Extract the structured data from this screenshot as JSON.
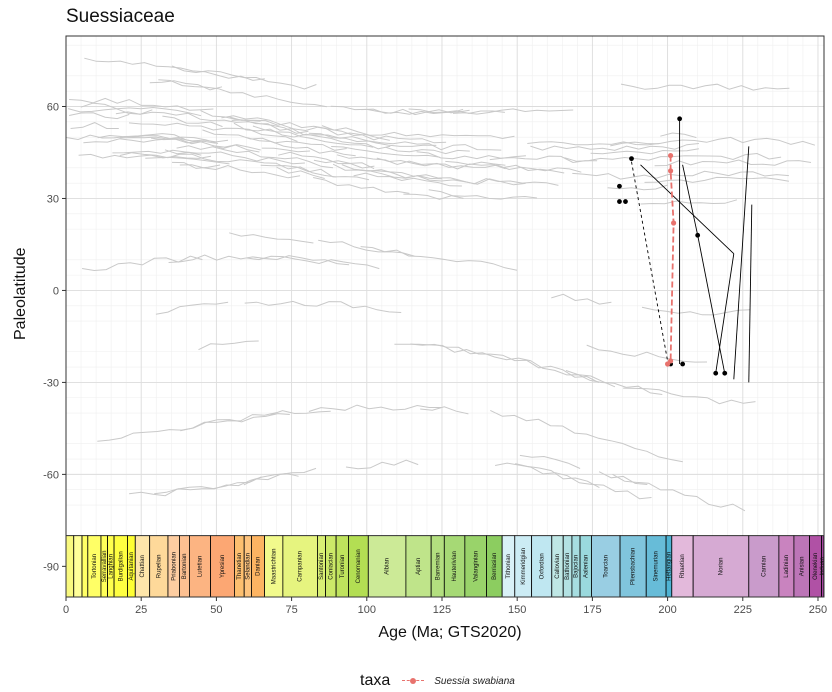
{
  "chart_data": {
    "type": "line",
    "title": "Suessiaceae",
    "xlabel": "Age (Ma; GTS2020)",
    "ylabel": "Paleolatitude",
    "xlim": [
      0,
      252
    ],
    "ylim": [
      -100,
      83
    ],
    "x_ticks": [
      0,
      25,
      50,
      75,
      100,
      125,
      150,
      175,
      200,
      225,
      250
    ],
    "y_ticks": [
      -90,
      -60,
      -30,
      0,
      30,
      60
    ],
    "grid": true,
    "legend_title": "taxa",
    "legend_position": "bottom",
    "series": [
      {
        "name": "Suessia swabiana",
        "color": "#e8726d",
        "style": "dashed",
        "points": [
          [
            201,
            44
          ],
          [
            201,
            39
          ],
          [
            202,
            22
          ],
          [
            201,
            -23
          ],
          [
            200,
            -24
          ]
        ]
      }
    ],
    "other_taxa_tracks": [
      {
        "style": "dashed",
        "points": [
          [
            188,
            42
          ],
          [
            200,
            -23
          ]
        ]
      },
      {
        "style": "solid",
        "points": [
          [
            205,
            41
          ],
          [
            210,
            18
          ],
          [
            219,
            -27
          ]
        ]
      },
      {
        "style": "solid",
        "points": [
          [
            204,
            56
          ],
          [
            204,
            -24
          ]
        ]
      },
      {
        "style": "solid",
        "points": [
          [
            222,
            12
          ],
          [
            216,
            -27
          ]
        ]
      },
      {
        "style": "solid",
        "points": [
          [
            227,
            47
          ],
          [
            222,
            -29
          ]
        ]
      },
      {
        "style": "solid",
        "points": [
          [
            228,
            28
          ],
          [
            227,
            -30
          ]
        ]
      },
      {
        "style": "solid",
        "points": [
          [
            191,
            41
          ],
          [
            222,
            12
          ]
        ]
      }
    ],
    "other_taxa_points": [
      [
        184,
        34
      ],
      [
        184,
        29
      ],
      [
        186,
        29
      ],
      [
        188,
        43
      ],
      [
        204,
        56
      ],
      [
        201,
        -24
      ],
      [
        205,
        -24
      ],
      [
        210,
        18
      ],
      [
        216,
        -27
      ],
      [
        219,
        -27
      ]
    ],
    "timescale": {
      "y_range": [
        -100,
        -80
      ],
      "stages": [
        {
          "name": "",
          "start": 0,
          "end": 2.58,
          "color": "#f9f97f"
        },
        {
          "name": "",
          "start": 2.58,
          "end": 5.33,
          "color": "#ffff99"
        },
        {
          "name": "",
          "start": 5.33,
          "end": 7.25,
          "color": "#ffff66"
        },
        {
          "name": "Tortonian",
          "start": 7.25,
          "end": 11.63,
          "color": "#ffff66"
        },
        {
          "name": "Serravallian",
          "start": 11.63,
          "end": 13.82,
          "color": "#ffff59"
        },
        {
          "name": "Langhian",
          "start": 13.82,
          "end": 15.98,
          "color": "#ffff4d"
        },
        {
          "name": "Burdigalian",
          "start": 15.98,
          "end": 20.44,
          "color": "#ffff41"
        },
        {
          "name": "Aquitanian",
          "start": 20.44,
          "end": 23.03,
          "color": "#ffff33"
        },
        {
          "name": "Chattian",
          "start": 23.03,
          "end": 27.82,
          "color": "#fee6aa"
        },
        {
          "name": "Rupelian",
          "start": 27.82,
          "end": 33.9,
          "color": "#fed99a"
        },
        {
          "name": "Priabonian",
          "start": 33.9,
          "end": 37.71,
          "color": "#fdcda1"
        },
        {
          "name": "Bartonian",
          "start": 37.71,
          "end": 41.03,
          "color": "#fdc091"
        },
        {
          "name": "Lutetian",
          "start": 41.03,
          "end": 48.07,
          "color": "#fcb482"
        },
        {
          "name": "Ypresian",
          "start": 48.07,
          "end": 56.0,
          "color": "#fca773"
        },
        {
          "name": "Thanetian",
          "start": 56.0,
          "end": 59.24,
          "color": "#fdbf6f"
        },
        {
          "name": "Selandian",
          "start": 59.24,
          "end": 61.66,
          "color": "#fec47e"
        },
        {
          "name": "Danian",
          "start": 61.66,
          "end": 66.0,
          "color": "#fdb462"
        },
        {
          "name": "Maastrichtian",
          "start": 66.0,
          "end": 72.1,
          "color": "#f2fa8c"
        },
        {
          "name": "Campanian",
          "start": 72.1,
          "end": 83.6,
          "color": "#e6f47f"
        },
        {
          "name": "Santonian",
          "start": 83.6,
          "end": 86.3,
          "color": "#d9ef74"
        },
        {
          "name": "Coniacian",
          "start": 86.3,
          "end": 89.8,
          "color": "#cce968"
        },
        {
          "name": "Turonian",
          "start": 89.8,
          "end": 93.9,
          "color": "#bfe35d"
        },
        {
          "name": "Cenomanian",
          "start": 93.9,
          "end": 100.5,
          "color": "#b3de53"
        },
        {
          "name": "Albian",
          "start": 100.5,
          "end": 113.0,
          "color": "#ccea97"
        },
        {
          "name": "Aptian",
          "start": 113.0,
          "end": 121.4,
          "color": "#bfe48a"
        },
        {
          "name": "Barremian",
          "start": 121.4,
          "end": 125.77,
          "color": "#b3df7f"
        },
        {
          "name": "Hauterivian",
          "start": 125.77,
          "end": 132.6,
          "color": "#a6d975"
        },
        {
          "name": "Valanginian",
          "start": 132.6,
          "end": 139.8,
          "color": "#99d36a"
        },
        {
          "name": "Berriasian",
          "start": 139.8,
          "end": 145.0,
          "color": "#8ccd60"
        },
        {
          "name": "Tithonian",
          "start": 145.0,
          "end": 149.2,
          "color": "#d9f1f7"
        },
        {
          "name": "Kimmeridgian",
          "start": 149.2,
          "end": 154.8,
          "color": "#ccecf4"
        },
        {
          "name": "Oxfordian",
          "start": 154.8,
          "end": 161.5,
          "color": "#bfe7f1"
        },
        {
          "name": "Callovian",
          "start": 161.5,
          "end": 165.3,
          "color": "#bfe7e5"
        },
        {
          "name": "Bathonian",
          "start": 165.3,
          "end": 168.2,
          "color": "#b3e2e3"
        },
        {
          "name": "Bajocian",
          "start": 168.2,
          "end": 170.9,
          "color": "#a6dde0"
        },
        {
          "name": "Aalenian",
          "start": 170.9,
          "end": 174.7,
          "color": "#9ad9dd"
        },
        {
          "name": "Toarcian",
          "start": 174.7,
          "end": 184.2,
          "color": "#99cee3"
        },
        {
          "name": "Pliensbachian",
          "start": 184.2,
          "end": 192.9,
          "color": "#80c5dd"
        },
        {
          "name": "Sinemurian",
          "start": 192.9,
          "end": 199.5,
          "color": "#67bcd8"
        },
        {
          "name": "Hettangian",
          "start": 199.5,
          "end": 201.4,
          "color": "#4eb3d3"
        },
        {
          "name": "Rhaetian",
          "start": 201.4,
          "end": 208.5,
          "color": "#e3b9db"
        },
        {
          "name": "Norian",
          "start": 208.5,
          "end": 227.0,
          "color": "#d6aad3"
        },
        {
          "name": "Carnian",
          "start": 227.0,
          "end": 237.0,
          "color": "#c99bcb"
        },
        {
          "name": "Ladinian",
          "start": 237.0,
          "end": 242.0,
          "color": "#c983bf"
        },
        {
          "name": "Anisian",
          "start": 242.0,
          "end": 247.2,
          "color": "#bc75b7"
        },
        {
          "name": "Olenekian",
          "start": 247.2,
          "end": 251.2,
          "color": "#b051a5"
        },
        {
          "name": "Induan",
          "start": 251.2,
          "end": 251.9,
          "color": "#a4469f"
        }
      ]
    }
  },
  "colors": {
    "panel_bg": "#ffffff",
    "grid_major": "#dcdcdc",
    "grid_minor": "#efefef",
    "background_tracks": "#c9c9c9",
    "taxon": "#e8726d",
    "other_taxa": "#000000"
  }
}
